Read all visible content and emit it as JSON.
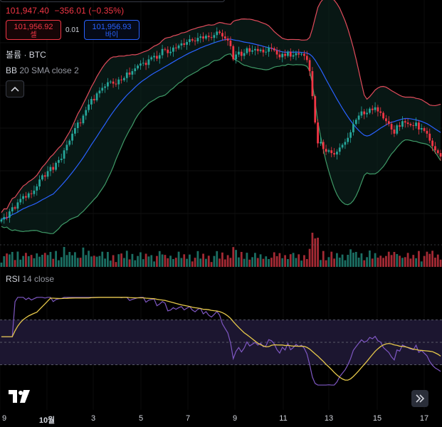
{
  "header": {
    "last_price": "101,947.40",
    "change": "−356.01 (−0.35%)",
    "sell": {
      "price": "101,956.92",
      "label": "셀"
    },
    "spread": "0.01",
    "buy": {
      "price": "101,956.93",
      "label": "바이"
    }
  },
  "volume_label": {
    "title": "볼륨",
    "sep": "·",
    "symbol": "BTC"
  },
  "bb_label": {
    "name": "BB",
    "params": "20 SMA close 2"
  },
  "rsi_label": {
    "name": "RSI",
    "params": "14 close"
  },
  "icons": {
    "collapse": "chevron-up-icon",
    "logo": "tradingview-logo",
    "scroll": "double-chevron-right-icon"
  },
  "colors": {
    "up": "#26a69a",
    "down": "#f23645",
    "bb_upper": "#e04b5b",
    "bb_lower": "#3f9a67",
    "bb_basis": "#2962ff",
    "rsi": "#7e57c2",
    "rsi_ma": "#e6c84a"
  },
  "chart_data": {
    "type": "candlestick",
    "x_ticks": [
      "9",
      "10월",
      "3",
      "5",
      "7",
      "9",
      "11",
      "13",
      "15",
      "17"
    ],
    "x_tick_bold": [
      "10월"
    ],
    "close_series": [
      97420,
      97600,
      97550,
      98000,
      98300,
      98200,
      98650,
      98900,
      99100,
      99000,
      99300,
      99250,
      99500,
      99800,
      100300,
      100600,
      100500,
      100900,
      101200,
      101000,
      101500,
      101700,
      101800,
      102400,
      102800,
      103100,
      103600,
      104000,
      104400,
      104350,
      104900,
      105300,
      105700,
      106100,
      106000,
      106500,
      106700,
      106900,
      107000,
      107300,
      107350,
      107200,
      107150,
      107500,
      107450,
      107600,
      108000,
      107850,
      108100,
      108300,
      108500,
      108650,
      108700,
      108550,
      108950,
      109100,
      109200,
      109000,
      109250,
      109700,
      109650,
      109400,
      109500,
      109800,
      109750,
      109950,
      110100,
      110000,
      110200,
      110400,
      110300,
      110250,
      110500,
      110600,
      110450,
      110650,
      110550,
      110500,
      110700,
      110950,
      110850,
      110600,
      110450,
      110300,
      109900,
      108950,
      109300,
      109500,
      109200,
      109400,
      109750,
      109500,
      109600,
      109700,
      109550,
      109650,
      109450,
      109500,
      109800,
      109750,
      109600,
      109300,
      109100,
      109350,
      109200,
      109500,
      109150,
      109250,
      109400,
      109300,
      109350,
      109200,
      108900,
      108100,
      106300,
      104400,
      102900,
      103000,
      102500,
      102300,
      102400,
      102200,
      102100,
      102300,
      102600,
      102800,
      103000,
      103300,
      103700,
      104300,
      104600,
      104900,
      105200,
      105000,
      105100,
      105400,
      105300,
      105500,
      105200,
      105100,
      104700,
      104500,
      104300,
      103900,
      103600,
      104200,
      104100,
      104500,
      104400,
      104300,
      104200,
      104150,
      104400,
      103900,
      104000,
      103800,
      103600,
      103100,
      102700,
      102400,
      102200,
      101950
    ],
    "volume_note": "volume bars per candle, coloured by direction",
    "rsi_levels": [
      70,
      50,
      30
    ]
  }
}
